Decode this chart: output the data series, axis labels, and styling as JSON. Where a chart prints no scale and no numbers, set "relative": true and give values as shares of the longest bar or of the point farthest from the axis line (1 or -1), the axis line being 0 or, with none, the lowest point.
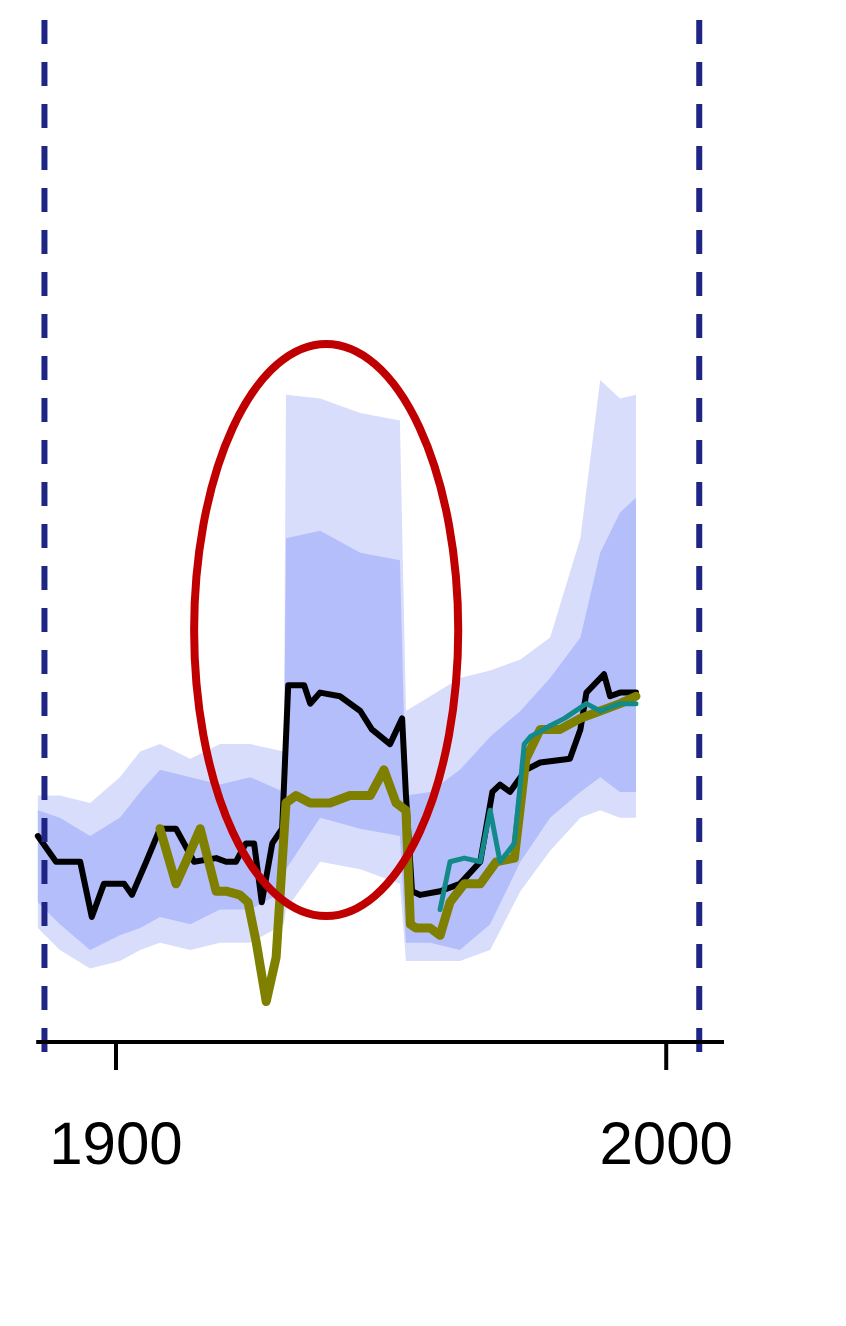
{
  "chart_data": {
    "type": "line",
    "relative": true,
    "xlim": [
      1885.5,
      2010.5
    ],
    "xticks": [
      1900,
      2000
    ],
    "tick_labels": "x",
    "grid": false,
    "marker": "none",
    "line_style": "solid",
    "series": [
      {
        "color": "#d9ddfc",
        "x": [
          1885.8,
          1889.8,
          1895.3,
          1900.7,
          1904.4,
          1908.0,
          1913.5,
          1918.9,
          1924.4,
          1930.5,
          1930.9,
          1937.1,
          1944.4,
          1951.6,
          1952.7,
          1957.1,
          1962.5,
          1968.0,
          1973.5,
          1978.9,
          1984.4,
          1988.0,
          1991.6,
          1994.5
        ],
        "values": [
          null,
          null,
          null,
          null,
          null,
          null,
          null,
          null,
          null,
          null,
          null,
          null,
          null,
          null,
          null,
          null,
          null,
          null,
          null,
          null,
          null,
          null,
          null,
          null
        ],
        "lower": [
          0.31,
          0.25,
          0.2,
          0.22,
          0.25,
          0.27,
          0.25,
          0.27,
          0.27,
          0.32,
          0.36,
          0.49,
          0.47,
          0.43,
          0.22,
          0.22,
          0.22,
          0.25,
          0.41,
          0.52,
          0.61,
          0.63,
          0.61,
          0.61
        ],
        "upper": [
          0.67,
          0.67,
          0.65,
          0.72,
          0.79,
          0.81,
          0.77,
          0.81,
          0.81,
          0.79,
          1.76,
          1.75,
          1.71,
          1.69,
          0.9,
          0.94,
          0.99,
          1.01,
          1.04,
          1.1,
          1.37,
          1.8,
          1.75,
          1.76
        ]
      },
      {
        "color": "#b4befa",
        "x": [
          1885.8,
          1889.8,
          1895.3,
          1900.7,
          1904.4,
          1908.0,
          1913.5,
          1918.9,
          1924.4,
          1930.5,
          1930.9,
          1937.1,
          1944.4,
          1951.6,
          1952.7,
          1957.1,
          1962.5,
          1968.0,
          1973.5,
          1978.9,
          1984.4,
          1988.0,
          1991.6,
          1994.5
        ],
        "values": [
          null,
          null,
          null,
          null,
          null,
          null,
          null,
          null,
          null,
          null,
          null,
          null,
          null,
          null,
          null,
          null,
          null,
          null,
          null,
          null,
          null,
          null,
          null,
          null
        ],
        "lower": [
          0.38,
          0.32,
          0.25,
          0.29,
          0.31,
          0.34,
          0.32,
          0.36,
          0.36,
          0.41,
          0.47,
          0.61,
          0.58,
          0.56,
          0.27,
          0.27,
          0.25,
          0.32,
          0.49,
          0.61,
          0.68,
          0.72,
          0.68,
          0.68
        ],
        "upper": [
          0.63,
          0.61,
          0.56,
          0.61,
          0.68,
          0.74,
          0.72,
          0.7,
          0.72,
          0.68,
          1.37,
          1.39,
          1.33,
          1.31,
          0.67,
          0.68,
          0.74,
          0.83,
          0.9,
          0.99,
          1.1,
          1.33,
          1.44,
          1.48
        ]
      },
      {
        "color": "#000000",
        "x": [
          1885.8,
          1889.1,
          1893.5,
          1895.6,
          1897.8,
          1901.5,
          1902.9,
          1905.5,
          1908.0,
          1910.9,
          1914.2,
          1918.2,
          1920.0,
          1921.8,
          1923.6,
          1925.1,
          1926.5,
          1928.4,
          1930.2,
          1931.3,
          1932.7,
          1934.2,
          1935.3,
          1937.1,
          1940.7,
          1944.4,
          1946.5,
          1949.8,
          1952.0,
          1952.7,
          1953.8,
          1955.3,
          1958.9,
          1962.5,
          1966.2,
          1968.4,
          1969.8,
          1971.6,
          1974.5,
          1977.1,
          1982.5,
          1984.4,
          1985.5,
          1988.7,
          1989.8,
          1991.6,
          1994.5
        ],
        "values": [
          0.56,
          0.49,
          0.49,
          0.34,
          0.43,
          0.43,
          0.4,
          0.49,
          0.58,
          0.58,
          0.49,
          0.5,
          0.49,
          0.49,
          0.54,
          0.54,
          0.38,
          0.54,
          0.58,
          0.97,
          0.97,
          0.97,
          0.92,
          0.95,
          0.94,
          0.9,
          0.85,
          0.81,
          0.88,
          0.67,
          0.41,
          0.4,
          0.41,
          0.43,
          0.49,
          0.68,
          0.7,
          0.68,
          0.74,
          0.76,
          0.77,
          0.85,
          0.95,
          1,
          0.94,
          0.95,
          0.95
        ]
      },
      {
        "color": "#7f7f00",
        "x": [
          1908.0,
          1910.9,
          1912.7,
          1915.3,
          1918.2,
          1920.0,
          1922.5,
          1924.0,
          1925.5,
          1927.3,
          1929.1,
          1930.9,
          1932.7,
          1935.3,
          1938.9,
          1942.5,
          1946.2,
          1948.7,
          1950.9,
          1952.7,
          1953.5,
          1954.5,
          1957.1,
          1958.9,
          1960.7,
          1963.3,
          1966.2,
          1969.1,
          1972.4,
          1974.5,
          1977.1,
          1980.7,
          1984.4,
          1988.0,
          1991.6,
          1994.5
        ],
        "values": [
          0.58,
          0.43,
          0.49,
          0.58,
          0.41,
          0.41,
          0.4,
          0.38,
          0.27,
          0.11,
          0.23,
          0.65,
          0.67,
          0.65,
          0.65,
          0.67,
          0.67,
          0.74,
          0.65,
          0.63,
          0.32,
          0.31,
          0.31,
          0.29,
          0.38,
          0.43,
          0.43,
          0.49,
          0.5,
          0.77,
          0.85,
          0.85,
          0.88,
          0.9,
          0.92,
          0.94
        ]
      },
      {
        "color": "#138a8a",
        "x": [
          1958.9,
          1960.7,
          1963.3,
          1966.2,
          1968.0,
          1969.8,
          1972.4,
          1974.2,
          1975.3,
          1978.9,
          1981.5,
          1985.5,
          1988.0,
          1991.6,
          1994.5
        ],
        "values": [
          0.36,
          0.49,
          0.5,
          0.49,
          0.63,
          0.49,
          0.54,
          0.81,
          0.83,
          0.86,
          0.88,
          0.92,
          0.9,
          0.92,
          0.92
        ]
      }
    ],
    "ref_lines": [
      {
        "axis": "x",
        "value": 1887,
        "color": "#1f2585",
        "line_style": "dashed"
      },
      {
        "axis": "x",
        "value": 2006,
        "color": "#1f2585",
        "line_style": "dashed"
      }
    ]
  }
}
